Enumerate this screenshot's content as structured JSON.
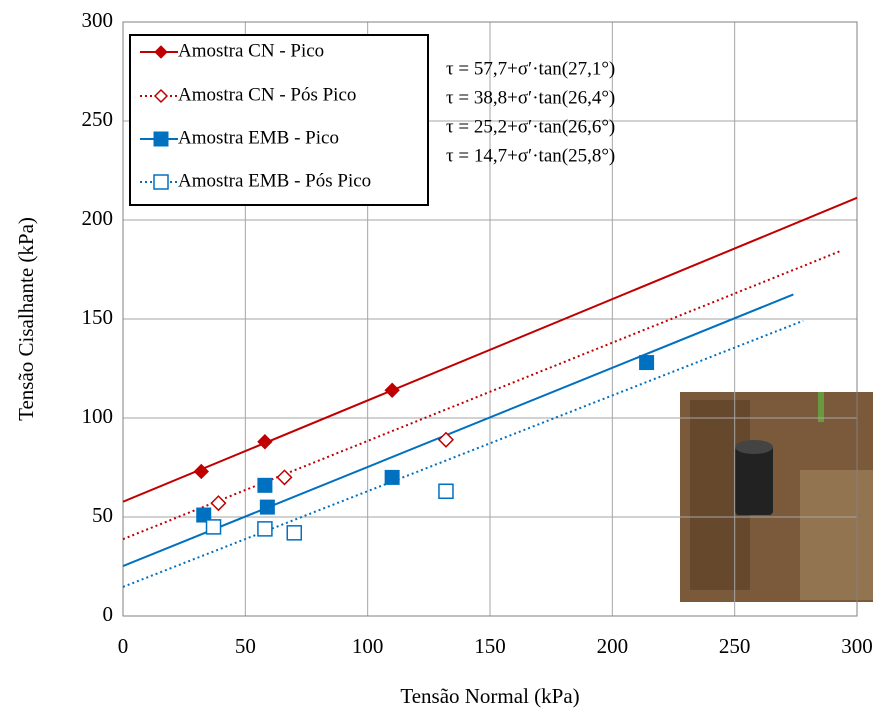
{
  "chart_data": {
    "type": "scatter",
    "x_label": "Tensão Normal (kPa)",
    "y_label": "Tensão Cisalhante (kPa)",
    "xlim": [
      0,
      300
    ],
    "ylim": [
      0,
      300
    ],
    "xticks": [
      0,
      50,
      100,
      150,
      200,
      250,
      300
    ],
    "yticks": [
      0,
      50,
      100,
      150,
      200,
      250,
      300
    ],
    "grid": true,
    "legend": "upper left",
    "series": [
      {
        "name": "Amostra CN - Pico",
        "color": "#c00000",
        "marker": "diamond",
        "filled": true,
        "line_style": "solid",
        "x": [
          32,
          58,
          110
        ],
        "values": [
          73,
          88,
          114
        ],
        "fit": {
          "x": [
            0,
            300
          ],
          "values": [
            57.7,
            211.2
          ]
        }
      },
      {
        "name": "Amostra CN - Pós Pico",
        "color": "#c00000",
        "marker": "diamond",
        "filled": false,
        "line_style": "dotted",
        "x": [
          39,
          66,
          132
        ],
        "values": [
          57,
          70,
          89
        ],
        "fit": {
          "x": [
            0,
            293
          ],
          "values": [
            38.8,
            184.2
          ]
        }
      },
      {
        "name": "Amostra EMB - Pico",
        "color": "#0070c0",
        "marker": "square",
        "filled": true,
        "line_style": "solid",
        "x": [
          33,
          58,
          59,
          110,
          214
        ],
        "values": [
          51,
          66,
          55,
          70,
          128
        ],
        "fit": {
          "x": [
            0,
            274
          ],
          "values": [
            25.2,
            162.4
          ]
        }
      },
      {
        "name": "Amostra EMB - Pós Pico",
        "color": "#0070c0",
        "marker": "square",
        "filled": false,
        "line_style": "dotted",
        "x": [
          37,
          58,
          70,
          132
        ],
        "values": [
          45,
          44,
          42,
          63
        ],
        "fit": {
          "x": [
            0,
            278
          ],
          "values": [
            14.7,
            149.1
          ]
        }
      }
    ],
    "annotations": [
      "τ = 57,7+σ′·tan(27,1°)",
      "τ = 38,8+σ′·tan(26,4°)",
      "τ = 25,2+σ′·tan(26,6°)",
      "τ = 14,7+σ′·tan(25,8°)"
    ]
  }
}
